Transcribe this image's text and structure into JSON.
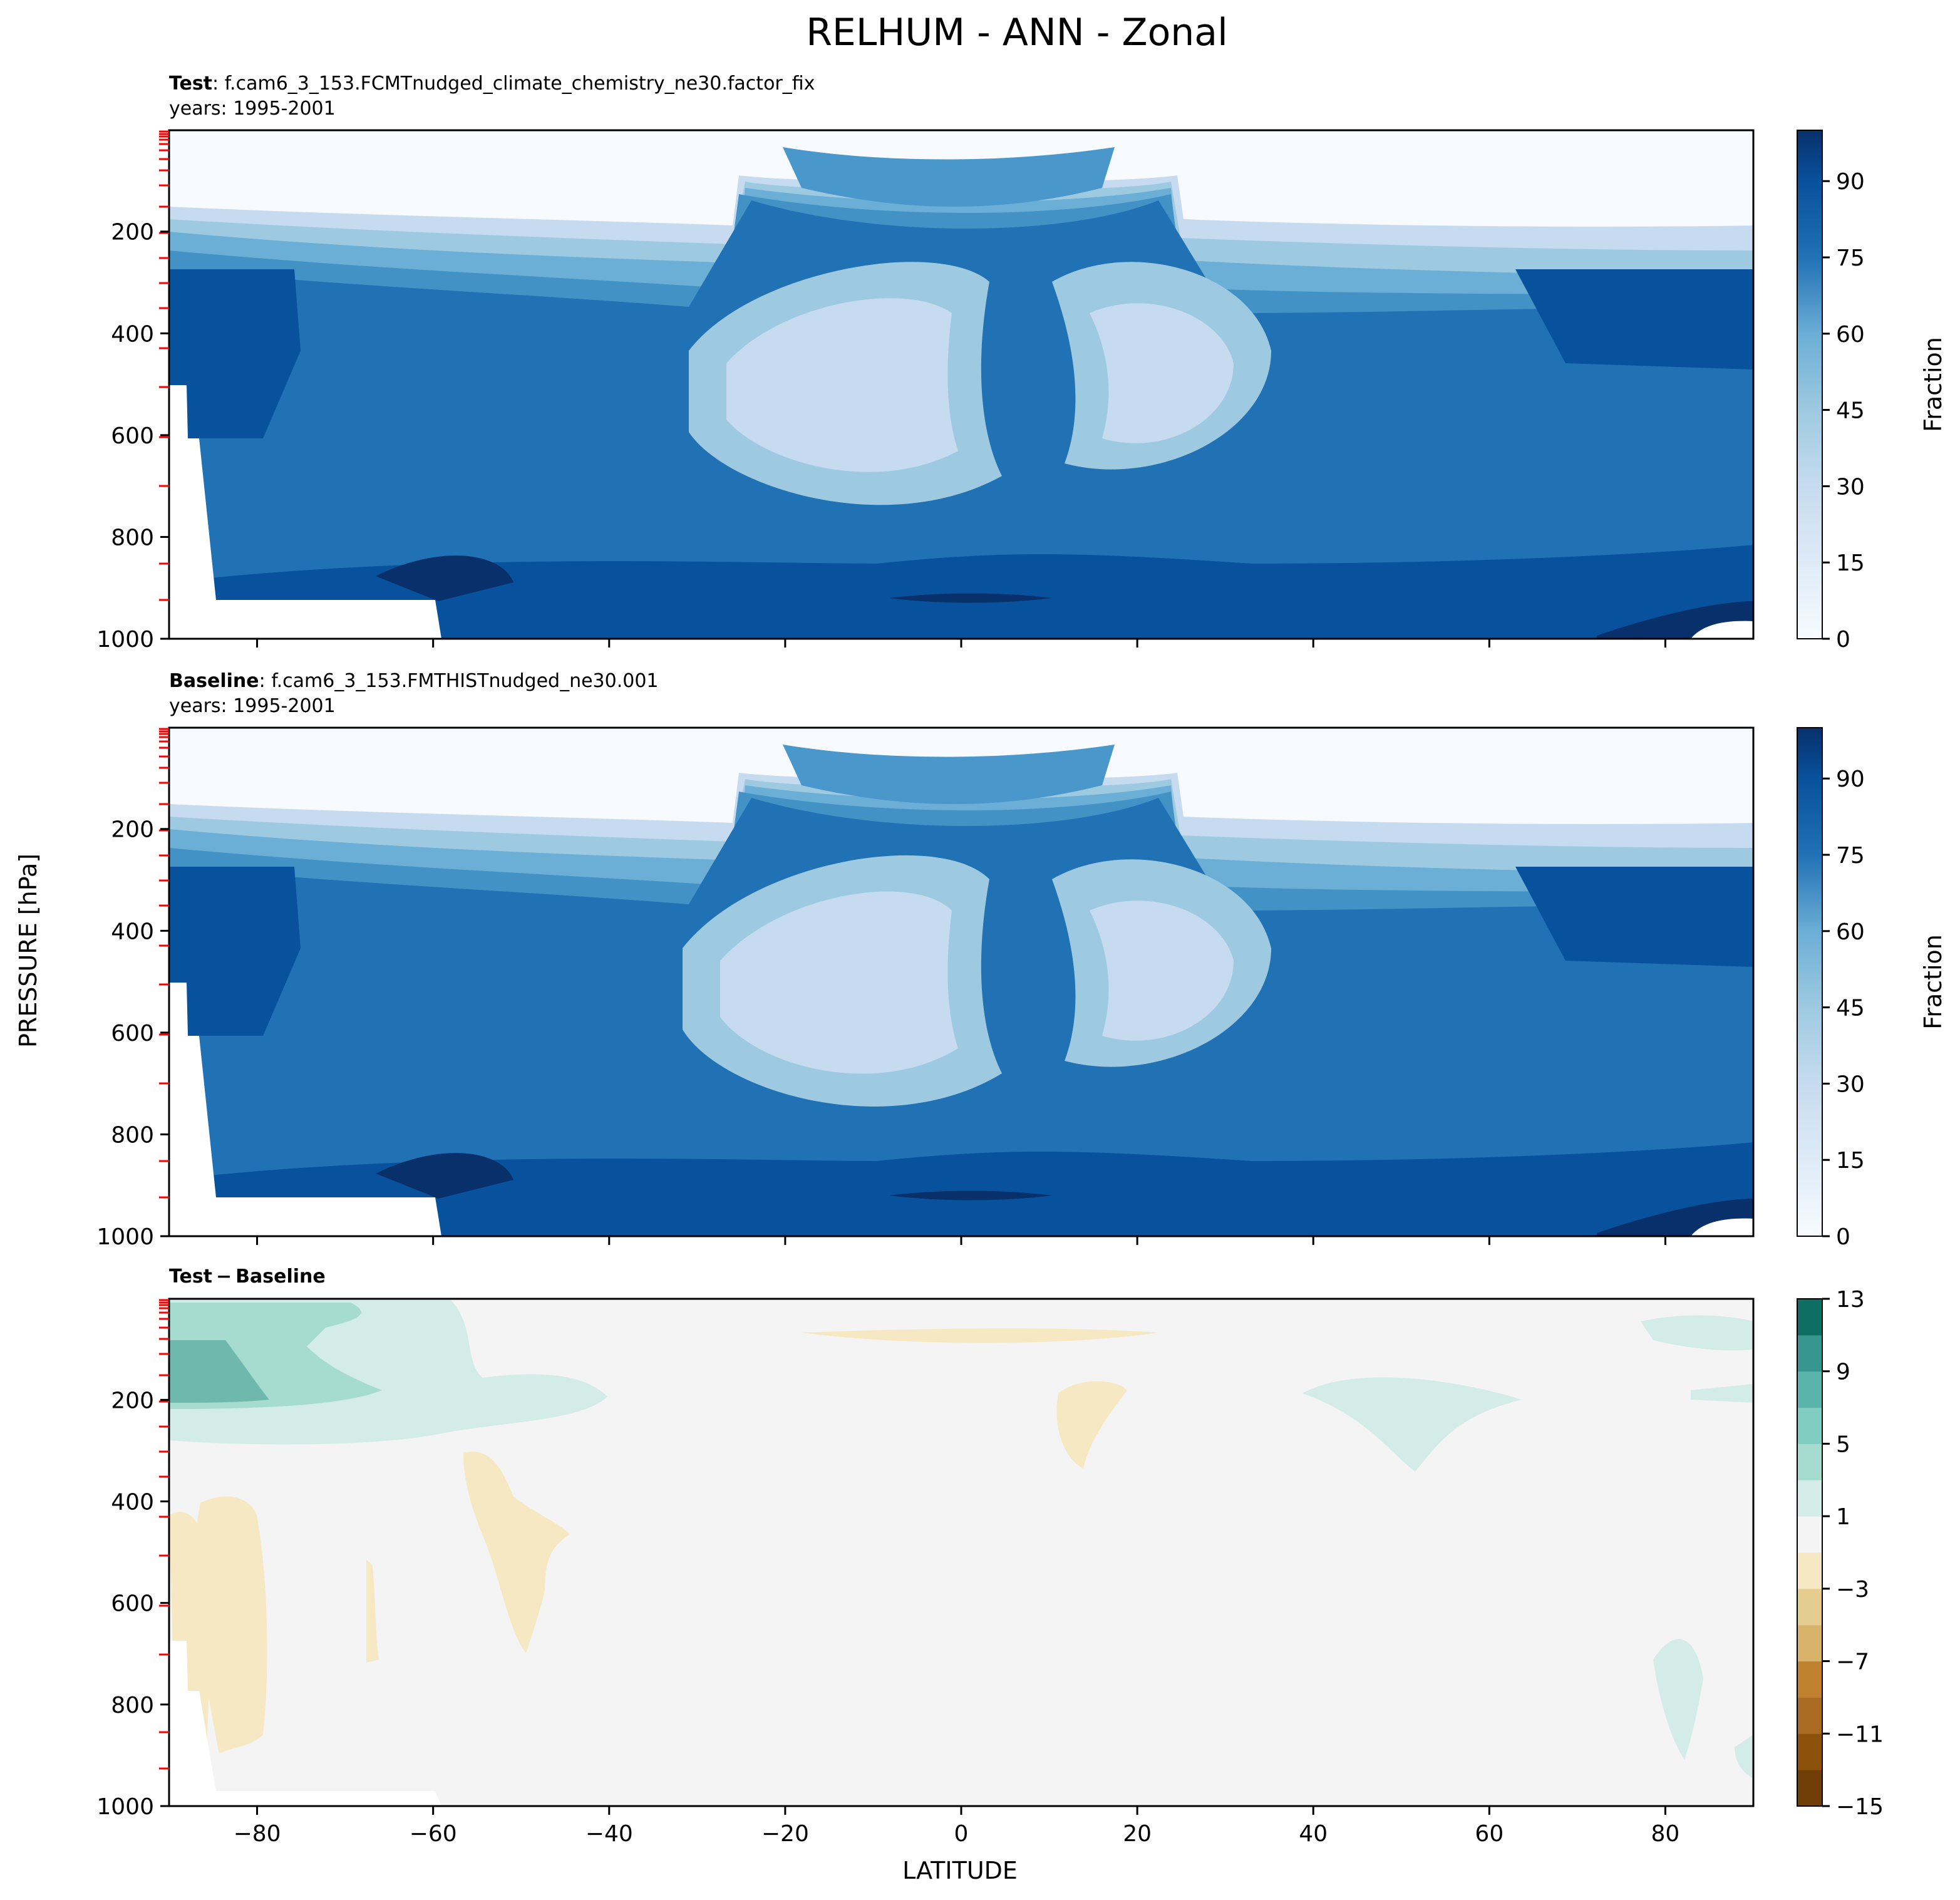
{
  "figure": {
    "title": "RELHUM - ANN - Zonal",
    "ylabel": "PRESSURE [hPa]",
    "xlabel": "LATITUDE"
  },
  "chart_data": [
    {
      "type": "heatmap",
      "panel": "test",
      "title_bold": "Test",
      "title_rest": ": f.cam6_3_153.FCMTnudged_climate_chemistry_ne30.factor_fix",
      "subtitle": "years: 1995-2001",
      "xlim": [
        -90,
        90
      ],
      "ylim": [
        1000,
        1
      ],
      "y_inverted": true,
      "x_ticks": [
        -80,
        -60,
        -40,
        -20,
        0,
        20,
        40,
        60,
        80
      ],
      "x_ticklabels_visible": false,
      "y_ticks": [
        200,
        400,
        600,
        800,
        1000
      ],
      "colormap": "Blues",
      "colorbar": {
        "label": "Fraction",
        "min": 0,
        "max": 100,
        "ticks": [
          0,
          15,
          30,
          45,
          60,
          75,
          90
        ]
      },
      "features": {
        "tropical_tropopause_max_pct": 70,
        "subtropical_minimum_pct": 25,
        "subtropical_minimum_locations_lat": [
          -25,
          25
        ],
        "subtropical_minimum_pressure_hPa": 450,
        "boundary_layer_max_pct": 90,
        "stratosphere_pct": 5
      }
    },
    {
      "type": "heatmap",
      "panel": "baseline",
      "title_bold": "Baseline",
      "title_rest": ": f.cam6_3_153.FMTHISTnudged_ne30.001",
      "subtitle": "years: 1995-2001",
      "xlim": [
        -90,
        90
      ],
      "ylim": [
        1000,
        1
      ],
      "y_inverted": true,
      "x_ticks": [
        -80,
        -60,
        -40,
        -20,
        0,
        20,
        40,
        60,
        80
      ],
      "x_ticklabels_visible": false,
      "y_ticks": [
        200,
        400,
        600,
        800,
        1000
      ],
      "colormap": "Blues",
      "colorbar": {
        "label": "Fraction",
        "min": 0,
        "max": 100,
        "ticks": [
          0,
          15,
          30,
          45,
          60,
          75,
          90
        ]
      },
      "features": {
        "tropical_tropopause_max_pct": 70,
        "subtropical_minimum_pct": 25,
        "subtropical_minimum_locations_lat": [
          -25,
          25
        ],
        "subtropical_minimum_pressure_hPa": 450,
        "boundary_layer_max_pct": 90,
        "stratosphere_pct": 5
      }
    },
    {
      "type": "heatmap",
      "panel": "difference",
      "title_bold": "Test − Baseline",
      "xlim": [
        -90,
        90
      ],
      "ylim": [
        1000,
        1
      ],
      "y_inverted": true,
      "x_ticks": [
        -80,
        -60,
        -40,
        -20,
        0,
        20,
        40,
        60,
        80
      ],
      "x_ticklabels": [
        "−80",
        "−60",
        "−40",
        "−20",
        "0",
        "20",
        "40",
        "60",
        "80"
      ],
      "y_ticks": [
        200,
        400,
        600,
        800,
        1000
      ],
      "colormap": "BrBG",
      "colorbar": {
        "label": "",
        "min": -15,
        "max": 13,
        "ticks": [
          -15,
          -11,
          -7,
          -3,
          1,
          5,
          9,
          13
        ],
        "ticklabels": [
          "−15",
          "−11",
          "−7",
          "−3",
          "1",
          "5",
          "9",
          "13"
        ]
      },
      "features": {
        "sh_upper_trop_positive_max": 7,
        "sh_lowlat_negative": -2,
        "mostly_near_zero_range": [
          -1,
          1
        ]
      }
    }
  ],
  "colors": {
    "blues": [
      "#f7fbff",
      "#deebf7",
      "#c6dbef",
      "#9ecae1",
      "#6baed6",
      "#4292c6",
      "#2171b5",
      "#08519c",
      "#08306b"
    ],
    "brbg_neg": [
      "#f6e8c3",
      "#e5cd8f",
      "#d7b46a",
      "#bf812d",
      "#a96a22",
      "#8c510a",
      "#6f3f07",
      "#543005"
    ],
    "brbg_pos": [
      "#d4ece8",
      "#a6dbd0",
      "#80cdc1",
      "#5ab4ac",
      "#35978f",
      "#0e6e63",
      "#01665e",
      "#003c30"
    ],
    "neutral": "#f3f4f3",
    "missing": "#ffffff",
    "level_tick": "#ff0000"
  }
}
